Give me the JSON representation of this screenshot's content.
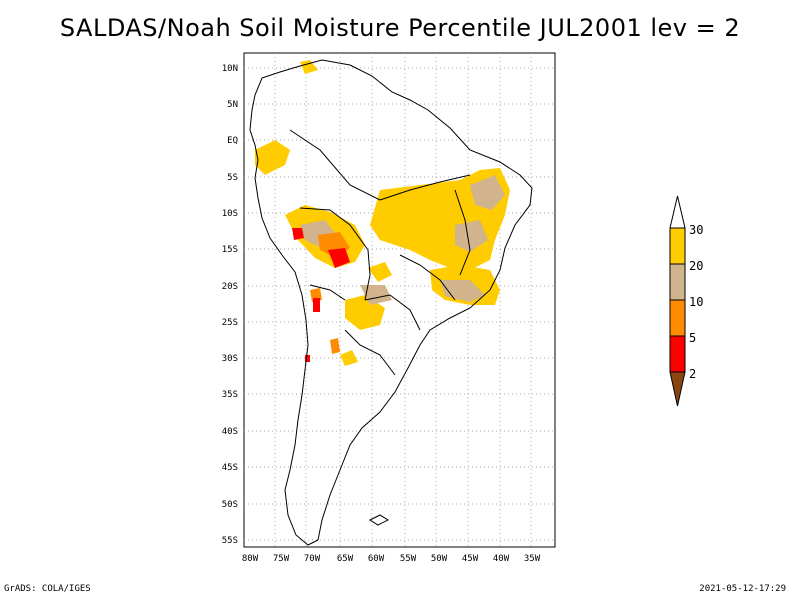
{
  "title": "SALDAS/Noah Soil Moisture Percentile JUL2001 lev = 2",
  "footer": {
    "left": "GrADS: COLA/IGES",
    "right": "2021-05-12-17:29"
  },
  "axes": {
    "lat_labels": [
      "10N",
      "5N",
      "EQ",
      "5S",
      "10S",
      "15S",
      "20S",
      "25S",
      "30S",
      "35S",
      "40S",
      "45S",
      "50S",
      "55S"
    ],
    "lon_labels": [
      "80W",
      "75W",
      "70W",
      "65W",
      "60W",
      "55W",
      "50W",
      "45W",
      "40W",
      "35W"
    ]
  },
  "colorbar": {
    "labels": [
      "30",
      "20",
      "10",
      "5",
      "2"
    ],
    "colors": {
      "above30": "#ffffff",
      "b20_30": "#ffcc00",
      "b10_20": "#d2b48c",
      "b5_10": "#ff8c00",
      "b2_5": "#ff0000",
      "below2": "#8b4513"
    }
  },
  "legend_colors": {
    "grid": "#aaaaaa",
    "border": "#000000"
  }
}
